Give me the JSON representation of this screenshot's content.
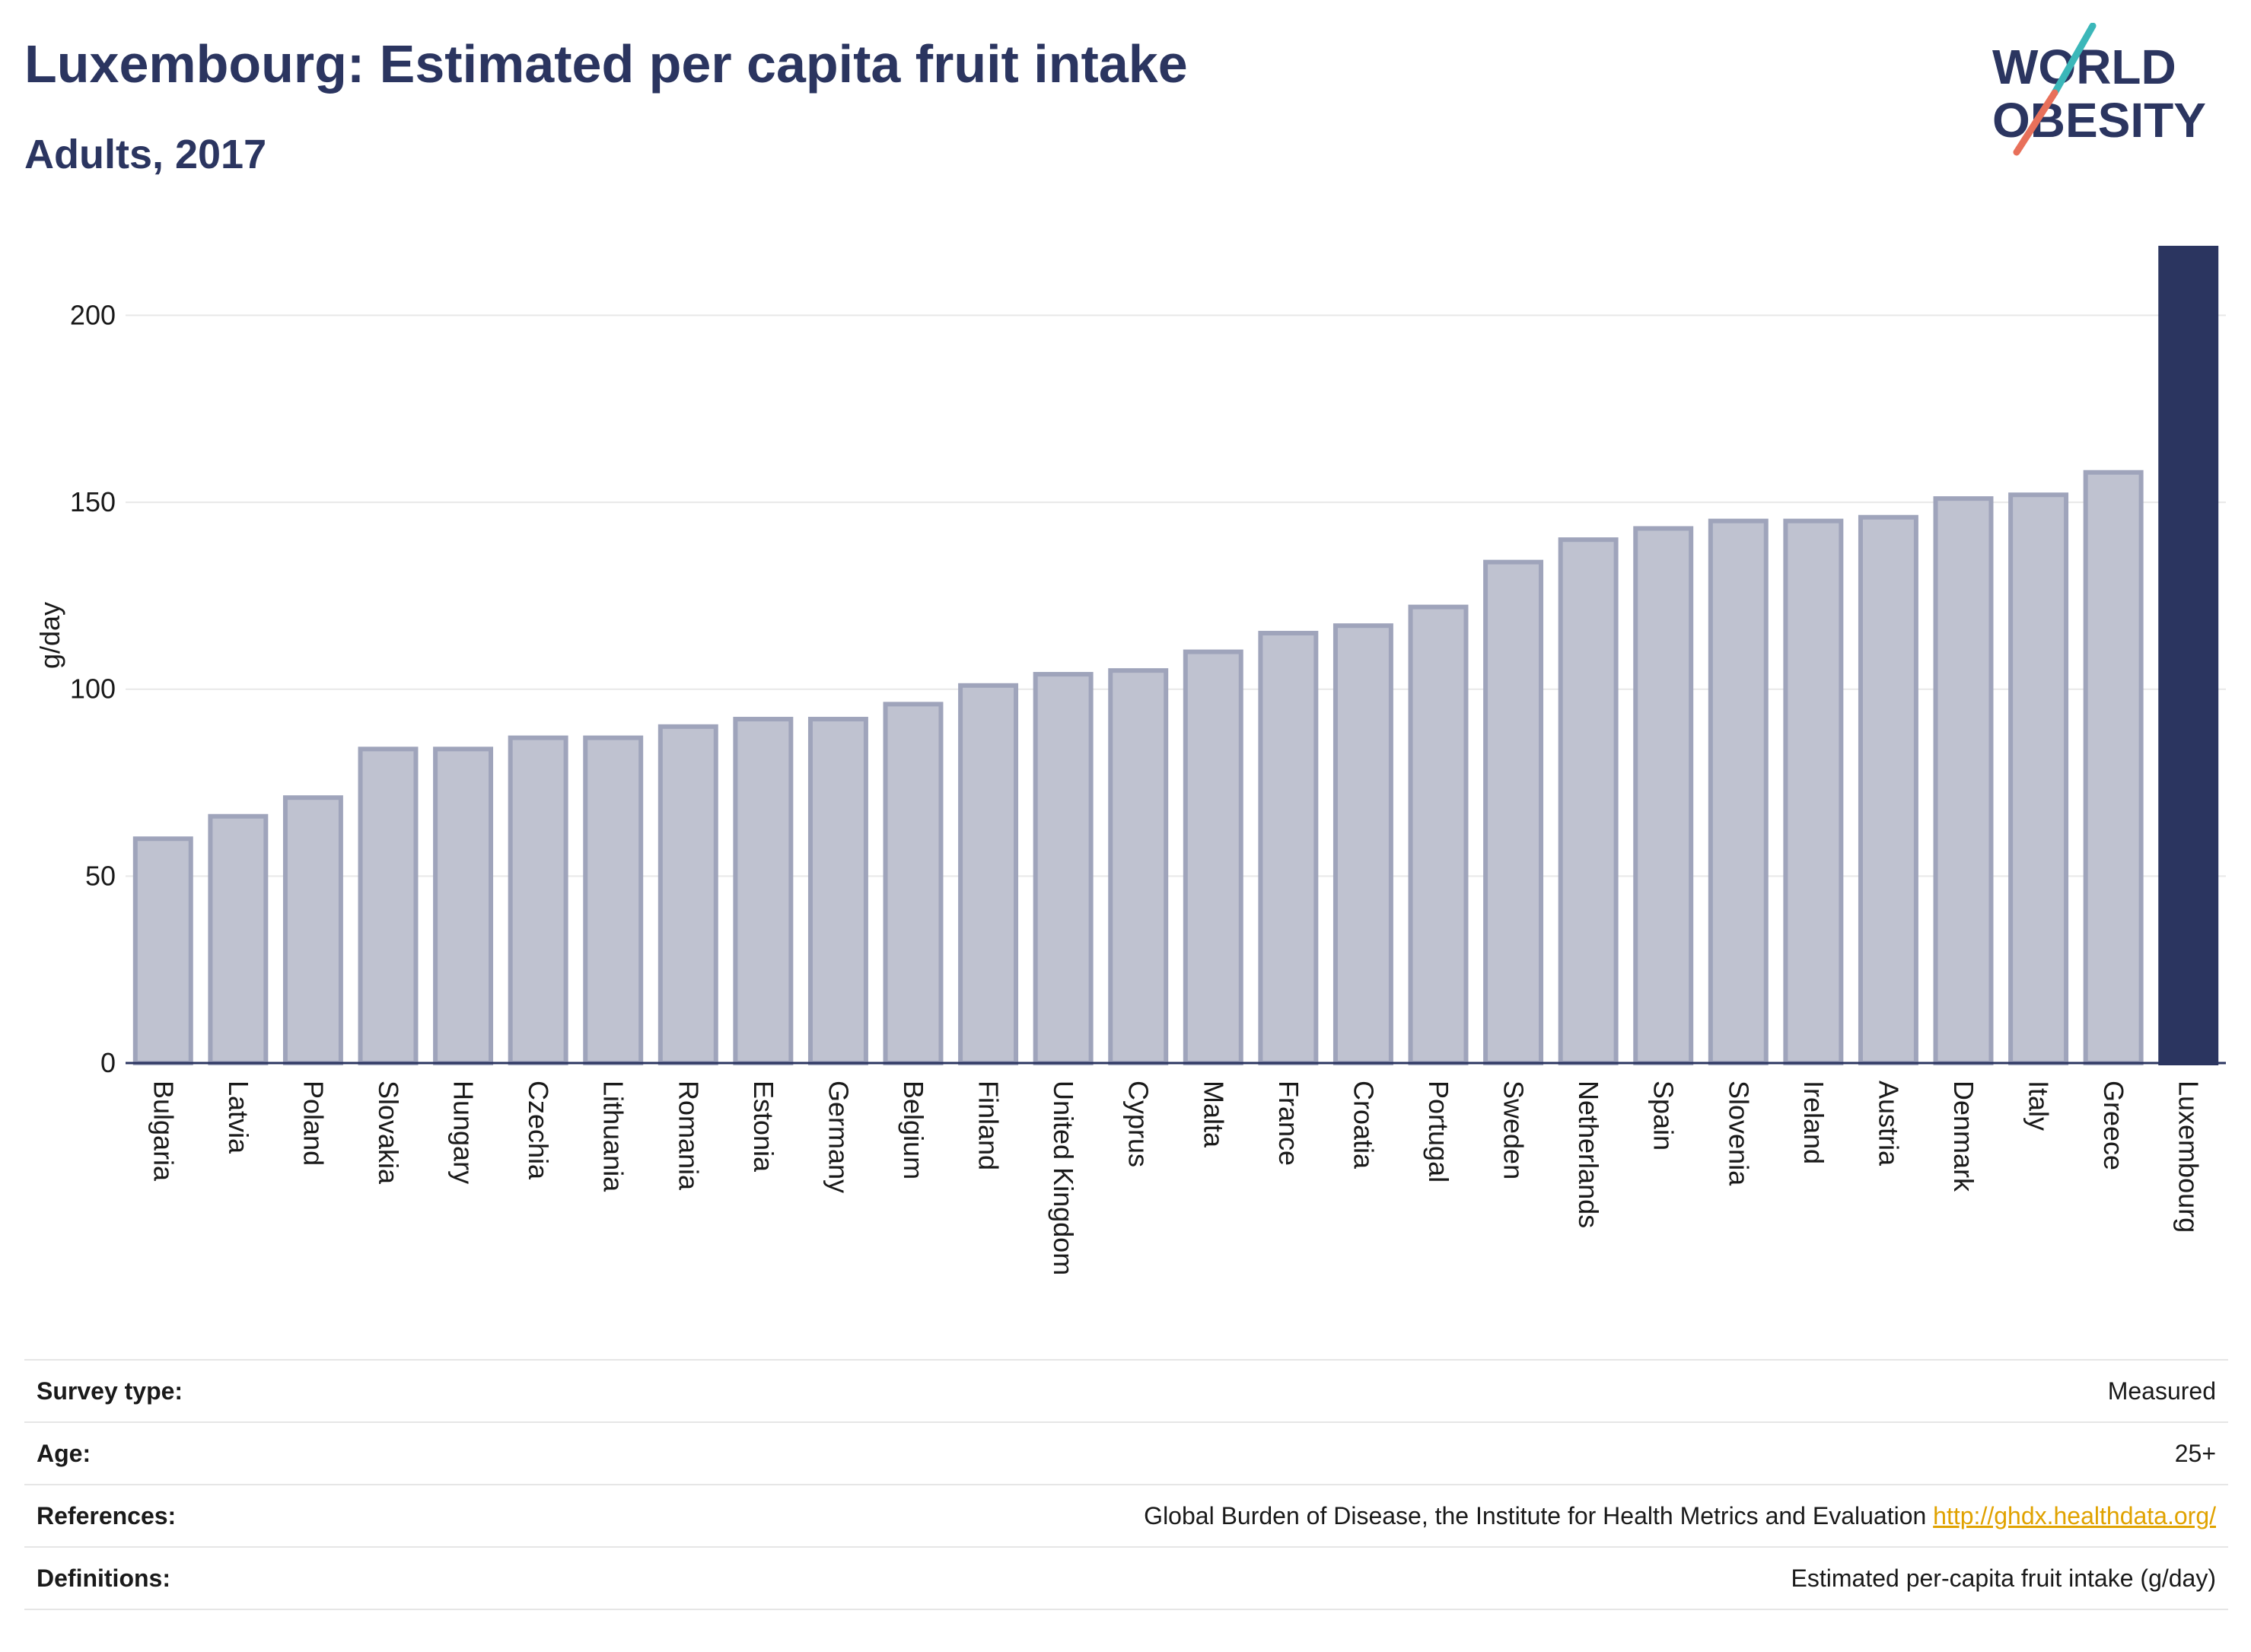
{
  "header": {
    "title": "Luxembourg: Estimated per capita fruit intake",
    "subtitle": "Adults, 2017"
  },
  "logo": {
    "line1": "WORLD",
    "line2": "OBESITY",
    "accent_teal": "#3bb7b9",
    "accent_coral": "#e8705a"
  },
  "colors": {
    "bar_default_fill": "#bfc2d0",
    "bar_default_stroke": "#9fa4bb",
    "bar_highlight": "#2b3560",
    "grid": "#e8e8e8",
    "text": "#2b3560"
  },
  "chart_data": {
    "type": "bar",
    "ylabel": "g/day",
    "ylim": [
      0,
      218
    ],
    "yticks": [
      0,
      50,
      100,
      150,
      200
    ],
    "grid": true,
    "highlight": "Luxembourg",
    "categories": [
      "Bulgaria",
      "Latvia",
      "Poland",
      "Slovakia",
      "Hungary",
      "Czechia",
      "Lithuania",
      "Romania",
      "Estonia",
      "Germany",
      "Belgium",
      "Finland",
      "United Kingdom",
      "Cyprus",
      "Malta",
      "France",
      "Croatia",
      "Portugal",
      "Sweden",
      "Netherlands",
      "Spain",
      "Slovenia",
      "Ireland",
      "Austria",
      "Denmark",
      "Italy",
      "Greece",
      "Luxembourg"
    ],
    "values": [
      60,
      66,
      71,
      84,
      84,
      87,
      87,
      90,
      92,
      92,
      96,
      101,
      104,
      105,
      110,
      115,
      117,
      122,
      134,
      140,
      143,
      145,
      145,
      146,
      151,
      152,
      158,
      218
    ]
  },
  "info": {
    "survey_type_label": "Survey type:",
    "survey_type_value": "Measured",
    "age_label": "Age:",
    "age_value": "25+",
    "references_label": "References:",
    "references_text": "Global Burden of Disease, the Institute for Health Metrics and Evaluation",
    "references_link": "http://ghdx.healthdata.org/",
    "definitions_label": "Definitions:",
    "definitions_value": "Estimated per-capita fruit intake (g/day)"
  }
}
